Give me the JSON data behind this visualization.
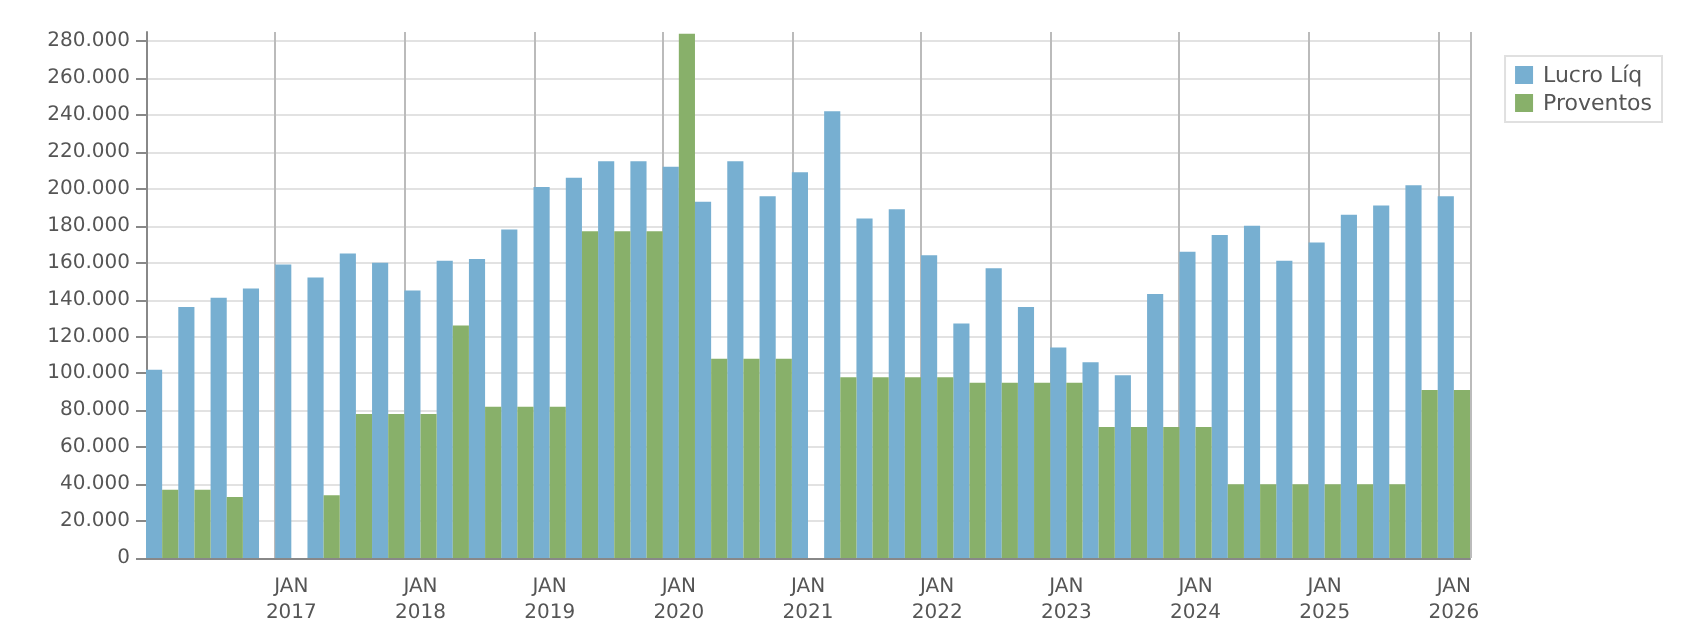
{
  "chart_data": {
    "type": "bar",
    "categories": [
      null,
      null,
      null,
      null,
      "JAN 2017",
      null,
      null,
      null,
      "JAN 2018",
      null,
      null,
      null,
      "JAN 2019",
      null,
      null,
      null,
      "JAN 2020",
      null,
      null,
      null,
      "JAN 2021",
      null,
      null,
      null,
      "JAN 2022",
      null,
      null,
      null,
      "JAN 2023",
      null,
      null,
      null,
      "JAN 2024",
      null,
      null,
      null,
      "JAN 2025",
      null,
      null,
      null,
      "JAN 2026"
    ],
    "series": [
      {
        "name": "Lucro Líq",
        "color": "#77afd1",
        "values": [
          102000,
          136000,
          141000,
          146000,
          159000,
          152000,
          165000,
          160000,
          145000,
          161000,
          162000,
          178000,
          201000,
          206000,
          215000,
          215000,
          212000,
          193000,
          215000,
          196000,
          209000,
          242000,
          184000,
          189000,
          164000,
          127000,
          157000,
          136000,
          114000,
          106000,
          99000,
          143000,
          166000,
          175000,
          180000,
          161000,
          171000,
          186000,
          191000,
          202000,
          196000
        ]
      },
      {
        "name": "Proventos",
        "color": "#88b06a",
        "values": [
          37000,
          37000,
          33000,
          null,
          null,
          34000,
          78000,
          78000,
          78000,
          126000,
          82000,
          82000,
          82000,
          177000,
          177000,
          177000,
          284000,
          108000,
          108000,
          108000,
          null,
          98000,
          98000,
          98000,
          98000,
          95000,
          95000,
          95000,
          95000,
          71000,
          71000,
          71000,
          71000,
          40000,
          40000,
          40000,
          40000,
          40000,
          40000,
          91000,
          91000
        ]
      }
    ],
    "ylim": [
      0,
      285000
    ],
    "yticks": [
      {
        "value": 0,
        "label": "0"
      },
      {
        "value": 20000,
        "label": "20.000"
      },
      {
        "value": 40000,
        "label": "40.000"
      },
      {
        "value": 60000,
        "label": "60.000"
      },
      {
        "value": 80000,
        "label": "80.000"
      },
      {
        "value": 100000,
        "label": "100.000"
      },
      {
        "value": 120000,
        "label": "120.000"
      },
      {
        "value": 140000,
        "label": "140.000"
      },
      {
        "value": 160000,
        "label": "160.000"
      },
      {
        "value": 180000,
        "label": "180.000"
      },
      {
        "value": 200000,
        "label": "200.000"
      },
      {
        "value": 220000,
        "label": "220.000"
      },
      {
        "value": 240000,
        "label": "240.000"
      },
      {
        "value": 260000,
        "label": "260.000"
      },
      {
        "value": 280000,
        "label": "280.000"
      }
    ],
    "grid": true,
    "legend": "top right"
  }
}
